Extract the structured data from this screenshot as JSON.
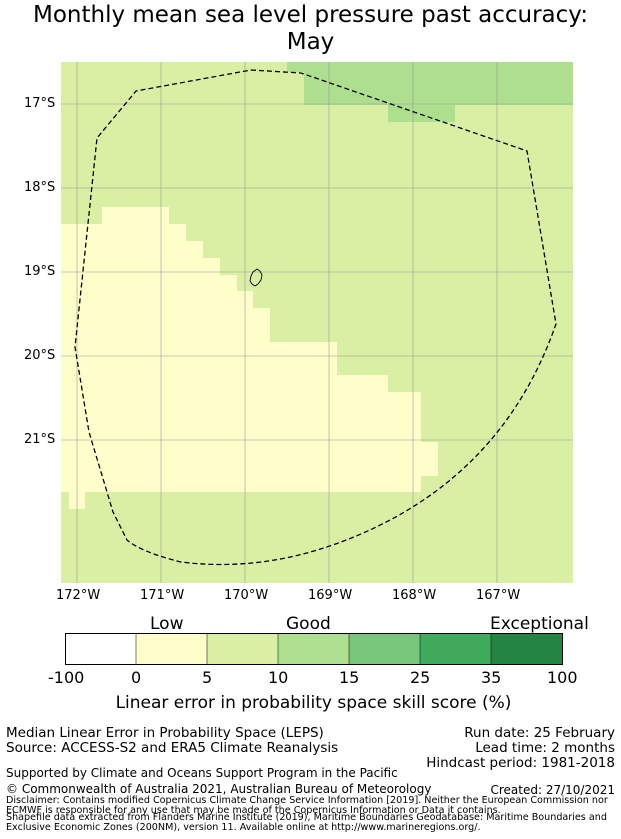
{
  "title_line1": "Monthly mean sea level pressure past accuracy:",
  "title_line2": "May",
  "map": {
    "lat_labels": [
      "17°S",
      "18°S",
      "19°S",
      "20°S",
      "21°S"
    ],
    "lon_labels": [
      "172°W",
      "171°W",
      "170°W",
      "169°W",
      "168°W",
      "167°W"
    ],
    "colors": {
      "low": "#fefecb",
      "good": "#d9efa3",
      "good_plus": "#addf8e",
      "ocean_edge": "#000000",
      "grid": "#9a9a9a"
    }
  },
  "colorbar": {
    "category_labels": [
      "Low",
      "Good",
      "Exceptional"
    ],
    "tick_labels": [
      "-100",
      "0",
      "5",
      "10",
      "15",
      "25",
      "35",
      "100"
    ],
    "segment_colors": [
      "#ffffff",
      "#fefecb",
      "#d9efa3",
      "#addf8e",
      "#78c679",
      "#41ab5d",
      "#238443"
    ],
    "title": "Linear error in probability space skill score (%)"
  },
  "footer": {
    "line1": "Median Linear Error in Probability Space (LEPS)",
    "line2": "Source: ACCESS-S2 and ERA5 Climate Reanalysis",
    "run_date": "Run date: 25 February",
    "lead_time": "Lead time: 2 months",
    "hindcast": "Hindcast period: 1981-2018",
    "support": "Supported by Climate and Oceans Support Program in the Pacific",
    "copyright": "© Commonwealth of Australia 2021, Australian Bureau of Meteorology",
    "created": "Created: 27/10/2021",
    "disclaimer1": "Disclaimer: Contains modified Copernicus Climate Change Service Information [2019]. Neither the European Commission nor",
    "disclaimer2": "ECMWF is responsible for any use that may be made of the Copernicus Information or Data it contains.",
    "disclaimer3": "Shapefile data extracted from Flanders Marine Institute (2019), Maritime Boundaries Geodatabase: Maritime Boundaries and",
    "disclaimer4": "Exclusive Economic Zones (200NM), version 11. Available online at http://www.marineregions.org/."
  }
}
